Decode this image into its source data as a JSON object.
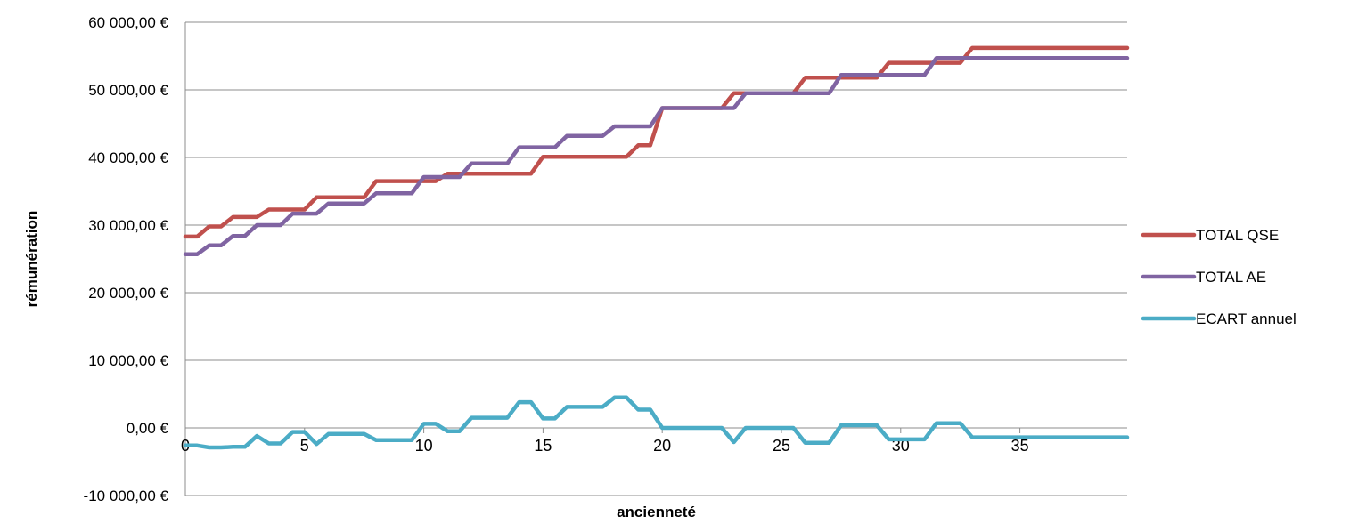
{
  "chart_data": {
    "type": "line",
    "xlabel": "ancienneté",
    "ylabel": "rémunération",
    "xlim": [
      0,
      39.5
    ],
    "ylim": [
      -10000,
      60000
    ],
    "y_ticks": [
      -10000,
      0,
      10000,
      20000,
      30000,
      40000,
      50000,
      60000
    ],
    "y_tick_labels": [
      "-10 000,00 €",
      "0,00 €",
      "10 000,00 €",
      "20 000,00 €",
      "30 000,00 €",
      "40 000,00 €",
      "50 000,00 €",
      "60 000,00 €"
    ],
    "x_ticks": [
      0,
      5,
      10,
      15,
      20,
      25,
      30,
      35
    ],
    "x_tick_labels": [
      "0",
      "5",
      "10",
      "15",
      "20",
      "25",
      "30",
      "35"
    ],
    "grid": "horizontal",
    "legend_position": "right",
    "series": [
      {
        "name": "TOTAL QSE",
        "color": "#c0504d",
        "points": [
          [
            0,
            28300
          ],
          [
            0.5,
            28300
          ],
          [
            1,
            29800
          ],
          [
            1.5,
            29800
          ],
          [
            2,
            31200
          ],
          [
            2.5,
            31200
          ],
          [
            3,
            31200
          ],
          [
            3.5,
            32300
          ],
          [
            4,
            32300
          ],
          [
            4.5,
            32300
          ],
          [
            5,
            32300
          ],
          [
            5.5,
            34100
          ],
          [
            6,
            34100
          ],
          [
            6.5,
            34100
          ],
          [
            7,
            34100
          ],
          [
            7.5,
            34100
          ],
          [
            8,
            36500
          ],
          [
            8.5,
            36500
          ],
          [
            9,
            36500
          ],
          [
            9.5,
            36500
          ],
          [
            10,
            36500
          ],
          [
            10.5,
            36500
          ],
          [
            11,
            37600
          ],
          [
            11.5,
            37600
          ],
          [
            12,
            37600
          ],
          [
            12.5,
            37600
          ],
          [
            13,
            37600
          ],
          [
            13.5,
            37600
          ],
          [
            14,
            37600
          ],
          [
            14.5,
            37600
          ],
          [
            15,
            40100
          ],
          [
            15.5,
            40100
          ],
          [
            16,
            40100
          ],
          [
            16.5,
            40100
          ],
          [
            17,
            40100
          ],
          [
            17.5,
            40100
          ],
          [
            18,
            40100
          ],
          [
            18.5,
            40100
          ],
          [
            19,
            41800
          ],
          [
            19.5,
            41800
          ],
          [
            20,
            47300
          ],
          [
            20.5,
            47300
          ],
          [
            21,
            47300
          ],
          [
            21.5,
            47300
          ],
          [
            22,
            47300
          ],
          [
            22.5,
            47300
          ],
          [
            23,
            49500
          ],
          [
            23.5,
            49500
          ],
          [
            24,
            49500
          ],
          [
            24.5,
            49500
          ],
          [
            25,
            49500
          ],
          [
            25.5,
            49500
          ],
          [
            26,
            51800
          ],
          [
            26.5,
            51800
          ],
          [
            27,
            51800
          ],
          [
            27.5,
            51800
          ],
          [
            28,
            51800
          ],
          [
            28.5,
            51800
          ],
          [
            29,
            51800
          ],
          [
            29.5,
            54000
          ],
          [
            30,
            54000
          ],
          [
            30.5,
            54000
          ],
          [
            31,
            54000
          ],
          [
            31.5,
            54000
          ],
          [
            32,
            54000
          ],
          [
            32.5,
            54000
          ],
          [
            33,
            56200
          ],
          [
            33.5,
            56200
          ],
          [
            34,
            56200
          ],
          [
            34.5,
            56200
          ],
          [
            35,
            56200
          ],
          [
            35.5,
            56200
          ],
          [
            36,
            56200
          ],
          [
            36.5,
            56200
          ],
          [
            37,
            56200
          ],
          [
            37.5,
            56200
          ],
          [
            38,
            56200
          ],
          [
            38.5,
            56200
          ],
          [
            39,
            56200
          ],
          [
            39.5,
            56200
          ]
        ]
      },
      {
        "name": "TOTAL AE",
        "color": "#8064a2",
        "points": [
          [
            0,
            25700
          ],
          [
            0.5,
            25700
          ],
          [
            1,
            27000
          ],
          [
            1.5,
            27000
          ],
          [
            2,
            28400
          ],
          [
            2.5,
            28400
          ],
          [
            3,
            30000
          ],
          [
            3.5,
            30000
          ],
          [
            4,
            30000
          ],
          [
            4.5,
            31700
          ],
          [
            5,
            31700
          ],
          [
            5.5,
            31700
          ],
          [
            6,
            33200
          ],
          [
            6.5,
            33200
          ],
          [
            7,
            33200
          ],
          [
            7.5,
            33200
          ],
          [
            8,
            34700
          ],
          [
            8.5,
            34700
          ],
          [
            9,
            34700
          ],
          [
            9.5,
            34700
          ],
          [
            10,
            37100
          ],
          [
            10.5,
            37100
          ],
          [
            11,
            37100
          ],
          [
            11.5,
            37100
          ],
          [
            12,
            39100
          ],
          [
            12.5,
            39100
          ],
          [
            13,
            39100
          ],
          [
            13.5,
            39100
          ],
          [
            14,
            41500
          ],
          [
            14.5,
            41500
          ],
          [
            15,
            41500
          ],
          [
            15.5,
            41500
          ],
          [
            16,
            43200
          ],
          [
            16.5,
            43200
          ],
          [
            17,
            43200
          ],
          [
            17.5,
            43200
          ],
          [
            18,
            44600
          ],
          [
            18.5,
            44600
          ],
          [
            19,
            44600
          ],
          [
            19.5,
            44600
          ],
          [
            20,
            47300
          ],
          [
            20.5,
            47300
          ],
          [
            21,
            47300
          ],
          [
            21.5,
            47300
          ],
          [
            22,
            47300
          ],
          [
            22.5,
            47300
          ],
          [
            23,
            47300
          ],
          [
            23.5,
            49500
          ],
          [
            24,
            49500
          ],
          [
            24.5,
            49500
          ],
          [
            25,
            49500
          ],
          [
            25.5,
            49500
          ],
          [
            26,
            49500
          ],
          [
            26.5,
            49500
          ],
          [
            27,
            49500
          ],
          [
            27.5,
            52200
          ],
          [
            28,
            52200
          ],
          [
            28.5,
            52200
          ],
          [
            29,
            52200
          ],
          [
            29.5,
            52200
          ],
          [
            30,
            52200
          ],
          [
            30.5,
            52200
          ],
          [
            31,
            52200
          ],
          [
            31.5,
            54700
          ],
          [
            32,
            54700
          ],
          [
            32.5,
            54700
          ],
          [
            33,
            54700
          ],
          [
            33.5,
            54700
          ],
          [
            34,
            54700
          ],
          [
            34.5,
            54700
          ],
          [
            35,
            54700
          ],
          [
            35.5,
            54700
          ],
          [
            36,
            54700
          ],
          [
            36.5,
            54700
          ],
          [
            37,
            54700
          ],
          [
            37.5,
            54700
          ],
          [
            38,
            54700
          ],
          [
            38.5,
            54700
          ],
          [
            39,
            54700
          ],
          [
            39.5,
            54700
          ]
        ]
      },
      {
        "name": "ECART annuel",
        "color": "#4bacc6",
        "points": [
          [
            0,
            -2600
          ],
          [
            0.5,
            -2600
          ],
          [
            1,
            -2900
          ],
          [
            1.5,
            -2900
          ],
          [
            2,
            -2800
          ],
          [
            2.5,
            -2800
          ],
          [
            3,
            -1200
          ],
          [
            3.5,
            -2300
          ],
          [
            4,
            -2300
          ],
          [
            4.5,
            -600
          ],
          [
            5,
            -600
          ],
          [
            5.5,
            -2400
          ],
          [
            6,
            -900
          ],
          [
            6.5,
            -900
          ],
          [
            7,
            -900
          ],
          [
            7.5,
            -900
          ],
          [
            8,
            -1800
          ],
          [
            8.5,
            -1800
          ],
          [
            9,
            -1800
          ],
          [
            9.5,
            -1800
          ],
          [
            10,
            600
          ],
          [
            10.5,
            600
          ],
          [
            11,
            -500
          ],
          [
            11.5,
            -500
          ],
          [
            12,
            1500
          ],
          [
            12.5,
            1500
          ],
          [
            13,
            1500
          ],
          [
            13.5,
            1500
          ],
          [
            14,
            3800
          ],
          [
            14.5,
            3800
          ],
          [
            15,
            1400
          ],
          [
            15.5,
            1400
          ],
          [
            16,
            3100
          ],
          [
            16.5,
            3100
          ],
          [
            17,
            3100
          ],
          [
            17.5,
            3100
          ],
          [
            18,
            4500
          ],
          [
            18.5,
            4500
          ],
          [
            19,
            2700
          ],
          [
            19.5,
            2700
          ],
          [
            20,
            0
          ],
          [
            20.5,
            0
          ],
          [
            21,
            0
          ],
          [
            21.5,
            0
          ],
          [
            22,
            0
          ],
          [
            22.5,
            0
          ],
          [
            23,
            -2100
          ],
          [
            23.5,
            0
          ],
          [
            24,
            0
          ],
          [
            24.5,
            0
          ],
          [
            25,
            0
          ],
          [
            25.5,
            0
          ],
          [
            26,
            -2200
          ],
          [
            26.5,
            -2200
          ],
          [
            27,
            -2200
          ],
          [
            27.5,
            400
          ],
          [
            28,
            400
          ],
          [
            28.5,
            400
          ],
          [
            29,
            400
          ],
          [
            29.5,
            -1700
          ],
          [
            30,
            -1700
          ],
          [
            30.5,
            -1700
          ],
          [
            31,
            -1700
          ],
          [
            31.5,
            700
          ],
          [
            32,
            700
          ],
          [
            32.5,
            700
          ],
          [
            33,
            -1400
          ],
          [
            33.5,
            -1400
          ],
          [
            34,
            -1400
          ],
          [
            34.5,
            -1400
          ],
          [
            35,
            -1400
          ],
          [
            35.5,
            -1400
          ],
          [
            36,
            -1400
          ],
          [
            36.5,
            -1400
          ],
          [
            37,
            -1400
          ],
          [
            37.5,
            -1400
          ],
          [
            38,
            -1400
          ],
          [
            38.5,
            -1400
          ],
          [
            39,
            -1400
          ],
          [
            39.5,
            -1400
          ]
        ]
      }
    ]
  }
}
